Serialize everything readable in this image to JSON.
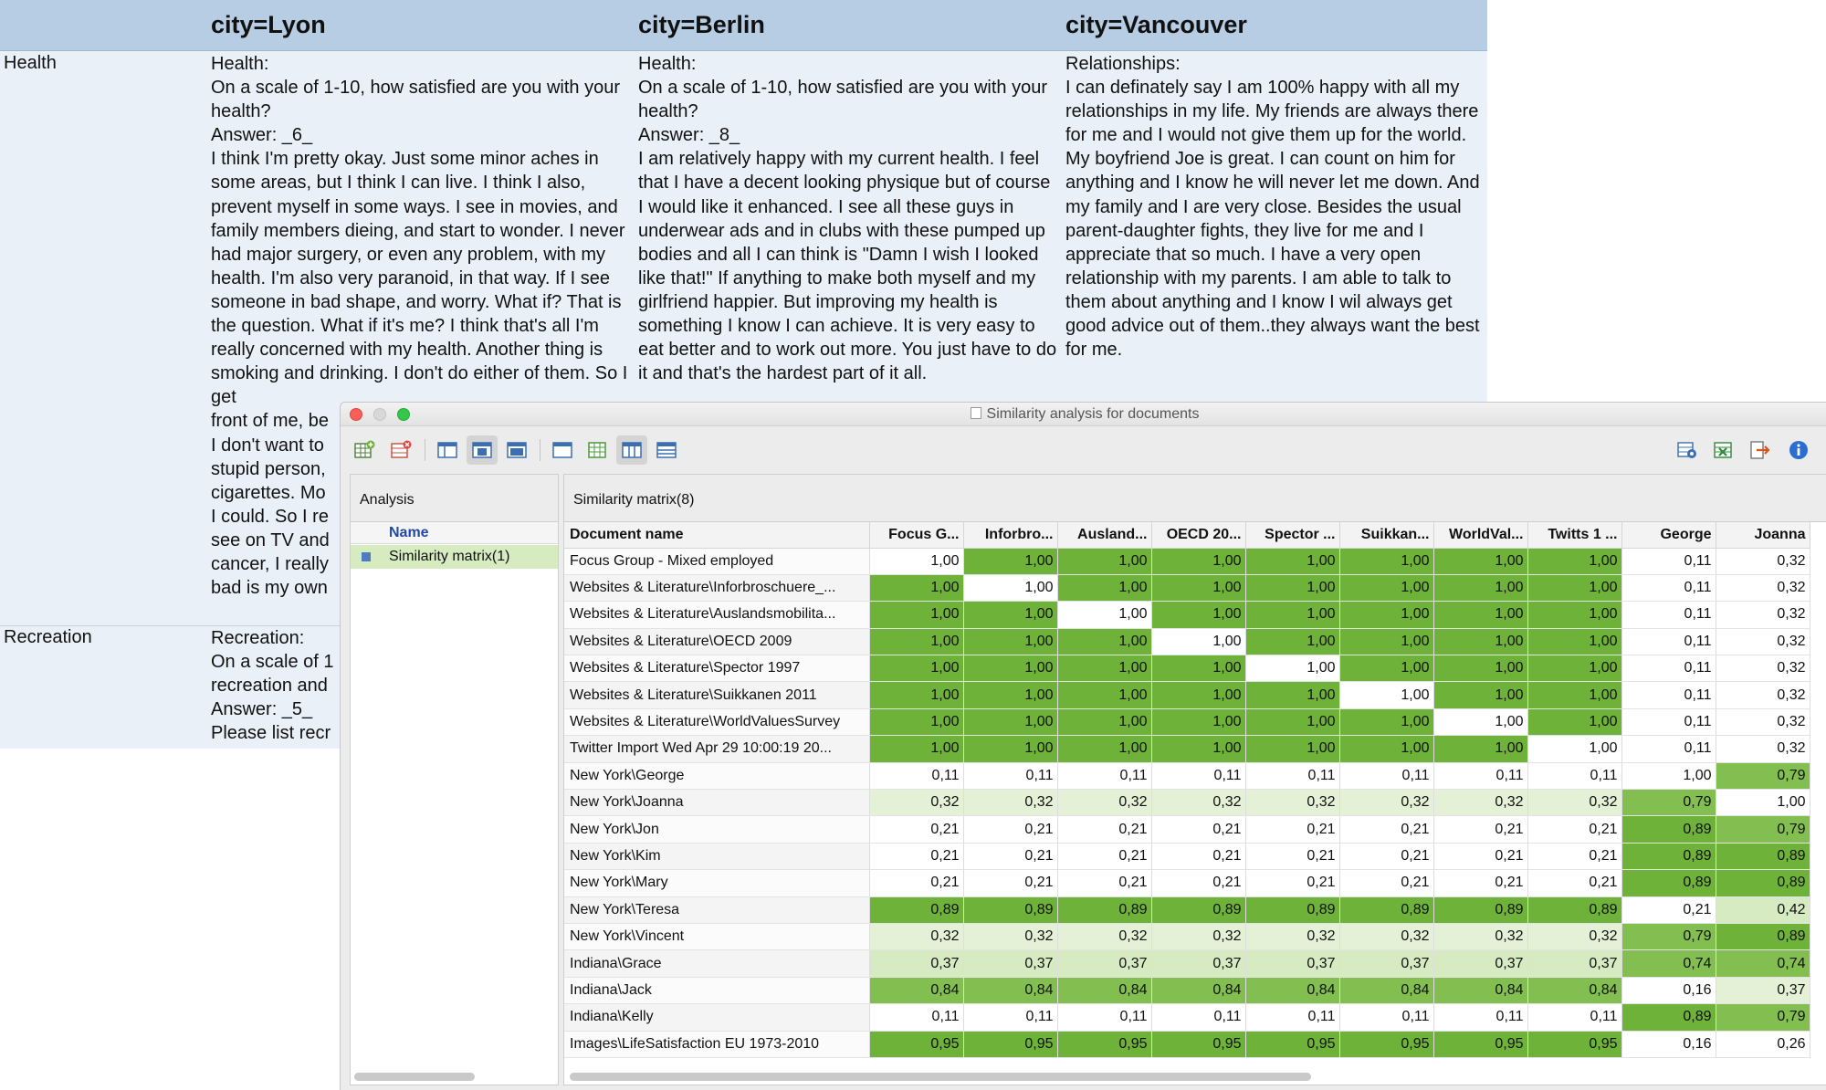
{
  "background_doc": {
    "cities": [
      "city=Lyon",
      "city=Berlin",
      "city=Vancouver"
    ],
    "rows": [
      {
        "label": "Health",
        "cells": [
          "Health:\nOn a scale of 1-10, how satisfied are you with your health?\nAnswer: _6_\nI think I'm pretty okay.  Just some minor aches in some areas, but I think I can live.  I think I also, prevent myself in some ways.  I see in movies, and family members dieing, and start to wonder.  I never had major surgery, or even any problem, with my health.  I'm also very paranoid, in that way.  If I see someone in bad shape, and worry.  What if? That is the question.  What if it's me? I think that's all I'm really concerned with my health. Another thing is smoking and drinking.  I don't do either of them.  So I get\nfront of me, be\nI don't want to\nstupid person,\ncigarettes.  Mo\nI could.  So I re\nsee on TV and\ncancer, I really\nbad is my own",
          "Health:\nOn a scale of 1-10, how satisfied are you with your health?\nAnswer: _8_\nI am relatively happy with my current health.  I feel that I have a decent looking physique but of course I would like it enhanced.  I see all these guys in underwear ads and in clubs with these pumped up bodies and all I can think is \"Damn I wish I looked like that!\"  If anything to make both myself and my girlfriend happier.  But improving my health is something I know I can achieve.  It is very easy to eat better and to work out more.  You just have to do it and that's the hardest part of it all.",
          "Relationships:\nI can definately say I am 100% happy with all my relationships in my life.  My friends are always there for me and I would not give them up for the world.  My boyfriend Joe is great.  I can count on him for anything and I know he will never let me down.  And my family and I are very close.  Besides the usual parent-daughter fights, they live for me and I appreciate that so much.  I have a very open relationship with my parents.  I am able to talk to them about anything and I know I wil always get good advice out of them..they always want the best for me."
        ]
      },
      {
        "label": "Recreation",
        "cells": [
          "Recreation:\nOn a scale of 1\nrecreation and\nAnswer: _5_\nPlease list recr",
          "",
          ""
        ]
      }
    ]
  },
  "window": {
    "title": "Similarity analysis for documents",
    "toolbar_left_icons": [
      "add-matrix-icon",
      "delete-matrix-icon",
      "layout-left-icon",
      "layout-center-icon",
      "layout-top-icon",
      "layout-blank-icon",
      "grid-icon",
      "columns-icon",
      "rows-icon"
    ],
    "toolbar_right_icons": [
      "chart-settings-icon",
      "excel-export-icon",
      "export-icon",
      "info-icon"
    ],
    "colors": {
      "full": "#6fb23a",
      "high": "#82bf50",
      "mid": "#a6d27e",
      "low": "#d7ebc3",
      "pale": "#e4f1d7",
      "selection": "#d6ecc0"
    },
    "left_pane": {
      "title": "Analysis",
      "column_header": "Name",
      "items": [
        "Similarity matrix(1)"
      ]
    },
    "right_pane": {
      "title": "Similarity matrix(8)",
      "name_header": "Document name",
      "columns": [
        "Focus G...",
        "Inforbro...",
        "Ausland...",
        "OECD 20...",
        "Spector ...",
        "Suikkan...",
        "WorldVal...",
        "Twitts 1 ...",
        "George",
        "Joanna"
      ],
      "rows": [
        {
          "name": "Focus Group - Mixed employed",
          "values": [
            "1,00",
            "1,00",
            "1,00",
            "1,00",
            "1,00",
            "1,00",
            "1,00",
            "1,00",
            "0,11",
            "0,32"
          ],
          "shades": [
            "diag",
            "full",
            "full",
            "full",
            "full",
            "full",
            "full",
            "full",
            "none",
            "none"
          ]
        },
        {
          "name": "Websites & Literature\\Inforbroschuere_...",
          "values": [
            "1,00",
            "1,00",
            "1,00",
            "1,00",
            "1,00",
            "1,00",
            "1,00",
            "1,00",
            "0,11",
            "0,32"
          ],
          "shades": [
            "full",
            "diag",
            "full",
            "full",
            "full",
            "full",
            "full",
            "full",
            "none",
            "none"
          ]
        },
        {
          "name": "Websites & Literature\\Auslandsmobilita...",
          "values": [
            "1,00",
            "1,00",
            "1,00",
            "1,00",
            "1,00",
            "1,00",
            "1,00",
            "1,00",
            "0,11",
            "0,32"
          ],
          "shades": [
            "full",
            "full",
            "diag",
            "full",
            "full",
            "full",
            "full",
            "full",
            "none",
            "none"
          ]
        },
        {
          "name": "Websites & Literature\\OECD 2009",
          "values": [
            "1,00",
            "1,00",
            "1,00",
            "1,00",
            "1,00",
            "1,00",
            "1,00",
            "1,00",
            "0,11",
            "0,32"
          ],
          "shades": [
            "full",
            "full",
            "full",
            "diag",
            "full",
            "full",
            "full",
            "full",
            "none",
            "none"
          ]
        },
        {
          "name": "Websites & Literature\\Spector 1997",
          "values": [
            "1,00",
            "1,00",
            "1,00",
            "1,00",
            "1,00",
            "1,00",
            "1,00",
            "1,00",
            "0,11",
            "0,32"
          ],
          "shades": [
            "full",
            "full",
            "full",
            "full",
            "diag",
            "full",
            "full",
            "full",
            "none",
            "none"
          ]
        },
        {
          "name": "Websites & Literature\\Suikkanen 2011",
          "values": [
            "1,00",
            "1,00",
            "1,00",
            "1,00",
            "1,00",
            "1,00",
            "1,00",
            "1,00",
            "0,11",
            "0,32"
          ],
          "shades": [
            "full",
            "full",
            "full",
            "full",
            "full",
            "diag",
            "full",
            "full",
            "none",
            "none"
          ]
        },
        {
          "name": "Websites & Literature\\WorldValuesSurvey",
          "values": [
            "1,00",
            "1,00",
            "1,00",
            "1,00",
            "1,00",
            "1,00",
            "1,00",
            "1,00",
            "0,11",
            "0,32"
          ],
          "shades": [
            "full",
            "full",
            "full",
            "full",
            "full",
            "full",
            "diag",
            "full",
            "none",
            "none"
          ]
        },
        {
          "name": "Twitter Import Wed Apr 29 10:00:19 20...",
          "values": [
            "1,00",
            "1,00",
            "1,00",
            "1,00",
            "1,00",
            "1,00",
            "1,00",
            "1,00",
            "0,11",
            "0,32"
          ],
          "shades": [
            "full",
            "full",
            "full",
            "full",
            "full",
            "full",
            "full",
            "diag",
            "none",
            "none"
          ]
        },
        {
          "name": "New York\\George",
          "values": [
            "0,11",
            "0,11",
            "0,11",
            "0,11",
            "0,11",
            "0,11",
            "0,11",
            "0,11",
            "1,00",
            "0,79"
          ],
          "shades": [
            "none",
            "none",
            "none",
            "none",
            "none",
            "none",
            "none",
            "none",
            "diag",
            "high"
          ]
        },
        {
          "name": "New York\\Joanna",
          "values": [
            "0,32",
            "0,32",
            "0,32",
            "0,32",
            "0,32",
            "0,32",
            "0,32",
            "0,32",
            "0,79",
            "1,00"
          ],
          "shades": [
            "pale",
            "pale",
            "pale",
            "pale",
            "pale",
            "pale",
            "pale",
            "pale",
            "high",
            "diag"
          ]
        },
        {
          "name": "New York\\Jon",
          "values": [
            "0,21",
            "0,21",
            "0,21",
            "0,21",
            "0,21",
            "0,21",
            "0,21",
            "0,21",
            "0,89",
            "0,79"
          ],
          "shades": [
            "none",
            "none",
            "none",
            "none",
            "none",
            "none",
            "none",
            "none",
            "full",
            "high"
          ]
        },
        {
          "name": "New York\\Kim",
          "values": [
            "0,21",
            "0,21",
            "0,21",
            "0,21",
            "0,21",
            "0,21",
            "0,21",
            "0,21",
            "0,89",
            "0,89"
          ],
          "shades": [
            "none",
            "none",
            "none",
            "none",
            "none",
            "none",
            "none",
            "none",
            "full",
            "full"
          ]
        },
        {
          "name": "New York\\Mary",
          "values": [
            "0,21",
            "0,21",
            "0,21",
            "0,21",
            "0,21",
            "0,21",
            "0,21",
            "0,21",
            "0,89",
            "0,89"
          ],
          "shades": [
            "none",
            "none",
            "none",
            "none",
            "none",
            "none",
            "none",
            "none",
            "full",
            "full"
          ]
        },
        {
          "name": "New York\\Teresa",
          "values": [
            "0,89",
            "0,89",
            "0,89",
            "0,89",
            "0,89",
            "0,89",
            "0,89",
            "0,89",
            "0,21",
            "0,42"
          ],
          "shades": [
            "full",
            "full",
            "full",
            "full",
            "full",
            "full",
            "full",
            "full",
            "none",
            "low"
          ]
        },
        {
          "name": "New York\\Vincent",
          "values": [
            "0,32",
            "0,32",
            "0,32",
            "0,32",
            "0,32",
            "0,32",
            "0,32",
            "0,32",
            "0,79",
            "0,89"
          ],
          "shades": [
            "pale",
            "pale",
            "pale",
            "pale",
            "pale",
            "pale",
            "pale",
            "pale",
            "high",
            "full"
          ]
        },
        {
          "name": "Indiana\\Grace",
          "values": [
            "0,37",
            "0,37",
            "0,37",
            "0,37",
            "0,37",
            "0,37",
            "0,37",
            "0,37",
            "0,74",
            "0,74"
          ],
          "shades": [
            "low",
            "low",
            "low",
            "low",
            "low",
            "low",
            "low",
            "low",
            "high",
            "high"
          ]
        },
        {
          "name": "Indiana\\Jack",
          "values": [
            "0,84",
            "0,84",
            "0,84",
            "0,84",
            "0,84",
            "0,84",
            "0,84",
            "0,84",
            "0,16",
            "0,37"
          ],
          "shades": [
            "high",
            "high",
            "high",
            "high",
            "high",
            "high",
            "high",
            "high",
            "none",
            "pale"
          ]
        },
        {
          "name": "Indiana\\Kelly",
          "values": [
            "0,11",
            "0,11",
            "0,11",
            "0,11",
            "0,11",
            "0,11",
            "0,11",
            "0,11",
            "0,89",
            "0,79"
          ],
          "shades": [
            "none",
            "none",
            "none",
            "none",
            "none",
            "none",
            "none",
            "none",
            "full",
            "high"
          ]
        },
        {
          "name": "Images\\LifeSatisfaction EU 1973-2010",
          "values": [
            "0,95",
            "0,95",
            "0,95",
            "0,95",
            "0,95",
            "0,95",
            "0,95",
            "0,95",
            "0,16",
            "0,26"
          ],
          "shades": [
            "full",
            "full",
            "full",
            "full",
            "full",
            "full",
            "full",
            "full",
            "none",
            "none"
          ]
        }
      ]
    }
  }
}
